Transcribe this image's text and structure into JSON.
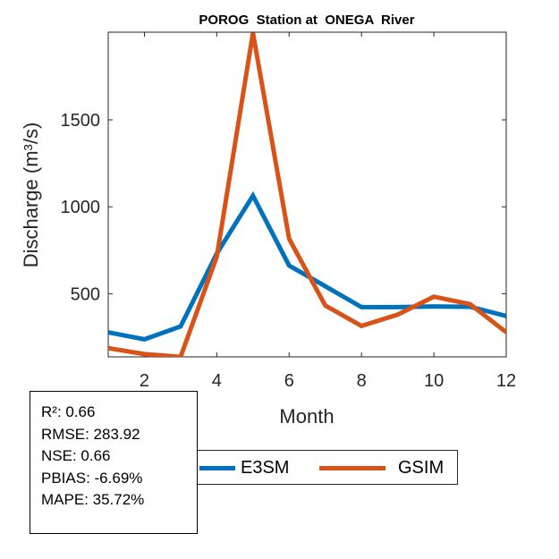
{
  "chart_data": {
    "type": "line",
    "title": "POROG  Station at  ONEGA  River",
    "xlabel": "Month",
    "ylabel": "Discharge (m³/s)",
    "x": [
      1,
      2,
      3,
      4,
      5,
      6,
      7,
      8,
      9,
      10,
      11,
      12
    ],
    "xlim": [
      1,
      12
    ],
    "ylim": [
      137,
      2004
    ],
    "xticks": [
      2,
      4,
      6,
      8,
      10,
      12
    ],
    "yticks": [
      500,
      1000,
      1500
    ],
    "grid": false,
    "legend_position": "bottom",
    "series": [
      {
        "name": "E3SM",
        "color": "#0072BD",
        "values": [
          278,
          238,
          312,
          731,
          1064,
          662,
          543,
          423,
          423,
          427,
          425,
          372
        ]
      },
      {
        "name": "GSIM",
        "color": "#D95319",
        "values": [
          187,
          153,
          137,
          713,
          2000,
          816,
          432,
          315,
          380,
          483,
          440,
          278
        ]
      }
    ]
  },
  "stats": [
    "R²: 0.66",
    "RMSE: 283.92",
    "NSE: 0.66",
    "PBIAS: -6.69%",
    "MAPE: 35.72%"
  ]
}
